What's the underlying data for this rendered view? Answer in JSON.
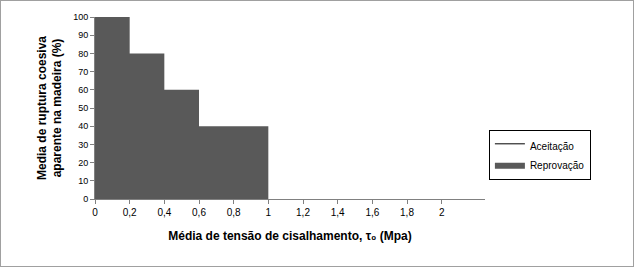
{
  "chart_data": {
    "type": "area",
    "line_style": "step",
    "xlabel": "Média de tensão de cisalhamento, τ₀ (Mpa)",
    "ylabel": "Media de ruptura coesiva\naparente na madeira (%)",
    "x": [
      0,
      0.2,
      0.4,
      0.6,
      1.0
    ],
    "series": [
      {
        "name": "Aceitação",
        "color": "#ffffff",
        "values": [
          null,
          null,
          null,
          null,
          null
        ]
      },
      {
        "name": "Reprovação",
        "color": "#595959",
        "values": [
          100,
          80,
          60,
          40,
          0
        ]
      }
    ],
    "xlim": [
      0,
      2.25
    ],
    "xticks": [
      0,
      {
        "value": 0.2,
        "label": "0,2"
      },
      {
        "value": 0.4,
        "label": "0,4"
      },
      {
        "value": 0.6,
        "label": "0,6"
      },
      {
        "value": 0.8,
        "label": "0,8"
      },
      1,
      {
        "value": 1.2,
        "label": "1,2"
      },
      {
        "value": 1.4,
        "label": "1,4"
      },
      {
        "value": 1.6,
        "label": "1,6"
      },
      {
        "value": 1.8,
        "label": "1,8"
      },
      2
    ],
    "ylim": [
      0,
      100
    ],
    "yticks": [
      0,
      10,
      20,
      30,
      40,
      50,
      60,
      70,
      80,
      90,
      100
    ],
    "grid": false,
    "legend": "right"
  }
}
